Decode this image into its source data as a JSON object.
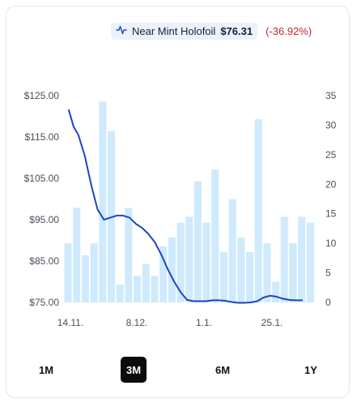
{
  "legend": {
    "icon": "line-chart-icon",
    "label": "Near Mint Holofoil",
    "price": "$76.31",
    "change": "(-36.92%)",
    "change_color": "#c0262d",
    "line_color": "#1e44c9"
  },
  "ranges": [
    {
      "label": "1M",
      "active": false
    },
    {
      "label": "3M",
      "active": true
    },
    {
      "label": "6M",
      "active": false
    },
    {
      "label": "1Y",
      "active": false
    }
  ],
  "chart_data": {
    "type": "bar+line",
    "title": "",
    "x_tick_labels": [
      "14.11.",
      "8.12.",
      "1.1.",
      "25.1."
    ],
    "y_left": {
      "ticks": [
        "$125.00",
        "$115.00",
        "$105.00",
        "$95.00",
        "$85.00",
        "$75.00"
      ],
      "range": [
        75,
        125
      ]
    },
    "y_right": {
      "ticks": [
        "35",
        "30",
        "25",
        "20",
        "15",
        "10",
        "5",
        "0"
      ],
      "range": [
        0,
        35
      ]
    },
    "grid": false,
    "bar_color": "#cfeafc",
    "volume_bars": [
      10,
      16,
      8,
      10,
      34,
      29,
      3,
      16,
      4.5,
      6.5,
      4.5,
      9.5,
      11,
      13.5,
      14.5,
      20.5,
      13.5,
      22.5,
      8.5,
      17.5,
      11,
      8.5,
      31,
      10,
      3.5,
      14.5,
      10,
      14.5,
      13.5
    ],
    "price_series": {
      "name": "Near Mint Holofoil",
      "points": [
        [
          0,
          121.5
        ],
        [
          3,
          117.5
        ],
        [
          6,
          115.5
        ],
        [
          10,
          110.5
        ],
        [
          14,
          103.5
        ],
        [
          18,
          97.5
        ],
        [
          22,
          95
        ],
        [
          26,
          95.5
        ],
        [
          30,
          96
        ],
        [
          34,
          96
        ],
        [
          38,
          95.5
        ],
        [
          42,
          94
        ],
        [
          46,
          93
        ],
        [
          50,
          91.5
        ],
        [
          54,
          89.5
        ],
        [
          58,
          86.5
        ],
        [
          62,
          83
        ],
        [
          66,
          80
        ],
        [
          70,
          77.5
        ],
        [
          74,
          75.6
        ],
        [
          78,
          75.3
        ],
        [
          82,
          75.3
        ],
        [
          86,
          75.3
        ],
        [
          90,
          75.5
        ],
        [
          94,
          75.5
        ],
        [
          98,
          75.4
        ],
        [
          102,
          75.1
        ],
        [
          106,
          74.9
        ],
        [
          110,
          74.9
        ],
        [
          114,
          75
        ],
        [
          118,
          75.3
        ],
        [
          122,
          76.2
        ],
        [
          126,
          76.6
        ],
        [
          130,
          76.4
        ],
        [
          134,
          75.9
        ],
        [
          138,
          75.6
        ],
        [
          142,
          75.5
        ],
        [
          146,
          75.5
        ]
      ]
    }
  }
}
